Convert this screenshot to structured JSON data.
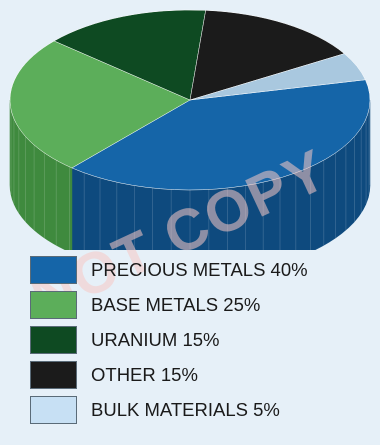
{
  "watermark": "NOT COPY",
  "chart_data": {
    "type": "pie",
    "style": "3d",
    "slices": [
      {
        "label": "PRECIOUS METALS 40%",
        "value": 40,
        "color": "#1565a8",
        "side": "#0e4a7e"
      },
      {
        "label": "BASE METALS 25%",
        "value": 25,
        "color": "#5cae5a",
        "side": "#3f8a3e"
      },
      {
        "label": "URANIUM 15%",
        "value": 15,
        "color": "#0e4a22",
        "side": "#08301a"
      },
      {
        "label": "OTHER 15%",
        "value": 15,
        "color": "#1b1b1b",
        "side": "#0a0a0a"
      },
      {
        "label": "BULK MATERIALS 5%",
        "value": 5,
        "color": "#a9c8df",
        "side": "#86a8c2"
      }
    ]
  },
  "legend": [
    {
      "label": "PRECIOUS METALS 40%",
      "color": "#1565a8"
    },
    {
      "label": "BASE METALS 25%",
      "color": "#5cae5a"
    },
    {
      "label": "URANIUM 15%",
      "color": "#0e4a22"
    },
    {
      "label": "OTHER 15%",
      "color": "#1b1b1b"
    },
    {
      "label": "BULK MATERIALS 5%",
      "color": "#c7e0f4"
    }
  ]
}
